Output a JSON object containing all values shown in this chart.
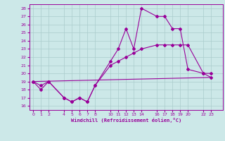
{
  "xlabel": "Windchill (Refroidissement éolien,°C)",
  "bg_color": "#cce8e8",
  "line_color": "#990099",
  "grid_color": "#aacccc",
  "xticks": [
    0,
    1,
    2,
    4,
    5,
    6,
    7,
    8,
    10,
    11,
    12,
    13,
    14,
    16,
    17,
    18,
    19,
    20,
    22,
    23
  ],
  "yticks": [
    16,
    17,
    18,
    19,
    20,
    21,
    22,
    23,
    24,
    25,
    26,
    27,
    28
  ],
  "ylim": [
    15.5,
    28.5
  ],
  "xlim": [
    -0.5,
    24.5
  ],
  "series": [
    {
      "x": [
        0,
        1,
        2,
        4,
        5,
        6,
        7,
        8,
        10,
        11,
        12,
        13,
        14,
        16,
        17,
        18,
        19,
        20,
        22,
        23
      ],
      "y": [
        19,
        18,
        19,
        17,
        16.5,
        17,
        16.5,
        18.5,
        21.5,
        23,
        25.5,
        23,
        28,
        27,
        27,
        25.5,
        25.5,
        20.5,
        20,
        19.5
      ]
    },
    {
      "x": [
        0,
        1,
        2,
        4,
        5,
        6,
        7,
        8,
        10,
        11,
        12,
        13,
        14,
        16,
        17,
        18,
        19,
        20,
        22,
        23
      ],
      "y": [
        19,
        18.5,
        19,
        17,
        16.5,
        17,
        16.5,
        18.5,
        21.0,
        21.5,
        22,
        22.5,
        23,
        23.5,
        23.5,
        23.5,
        23.5,
        23.5,
        20,
        20
      ]
    },
    {
      "x": [
        0,
        23
      ],
      "y": [
        19,
        19.5
      ]
    }
  ]
}
